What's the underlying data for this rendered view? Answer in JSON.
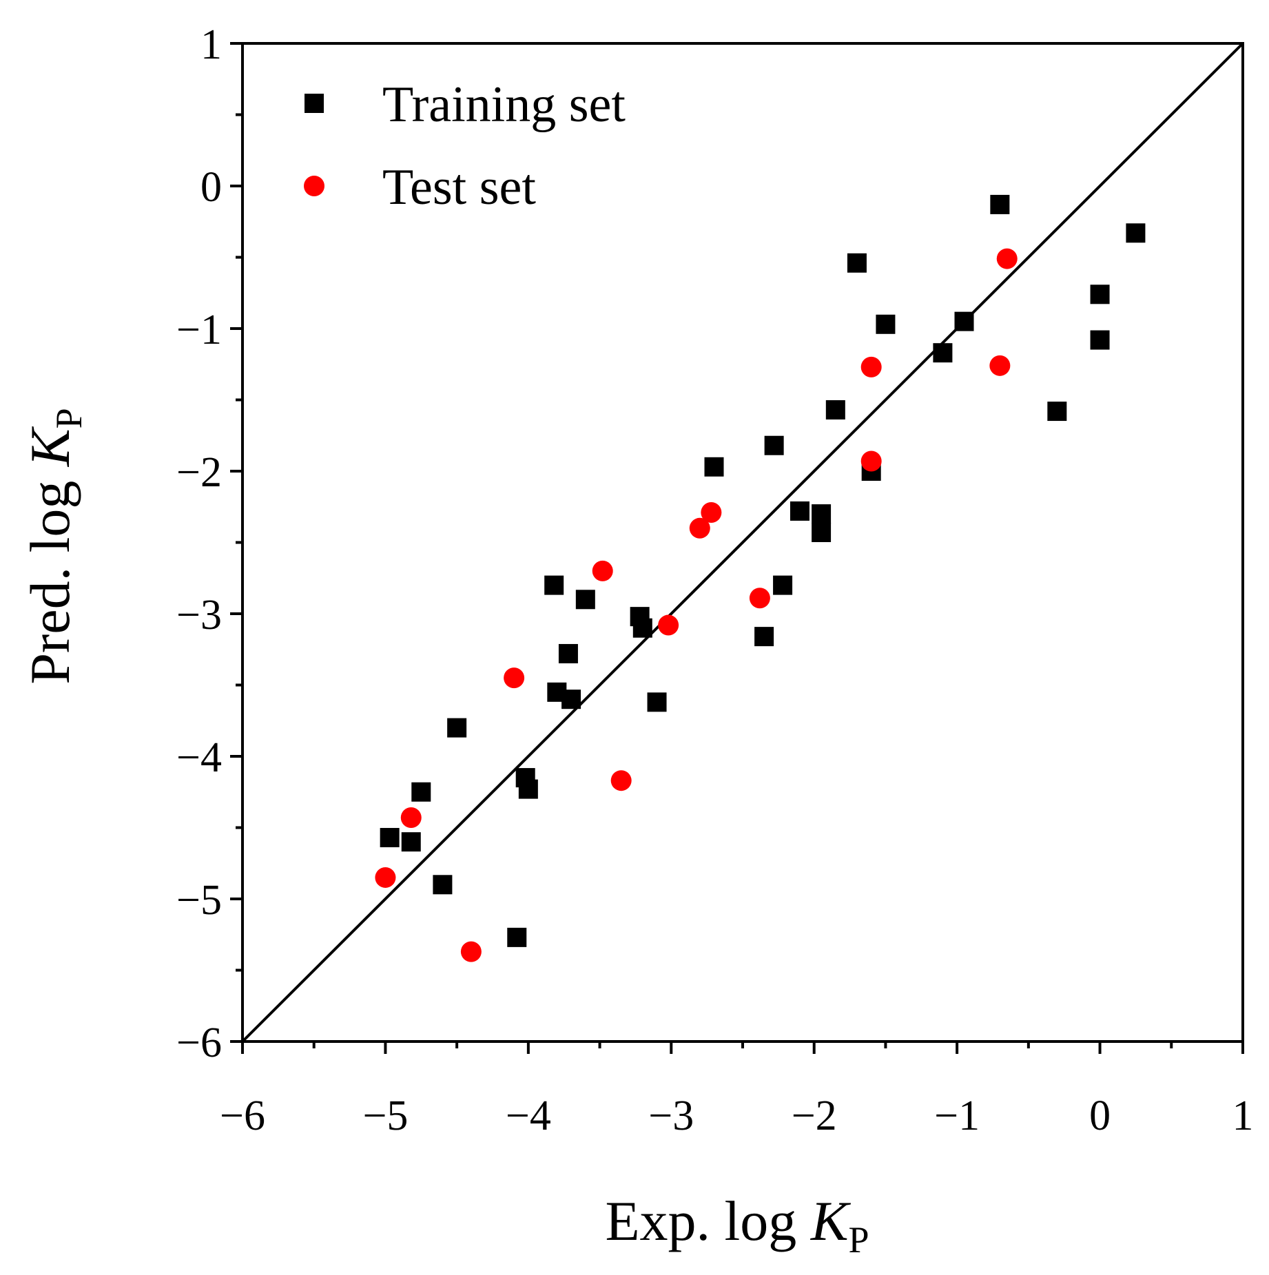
{
  "chart_data": {
    "type": "scatter",
    "title": "",
    "xlabel": {
      "prefix": "Exp. log ",
      "var": "K",
      "sub": "P"
    },
    "ylabel": {
      "prefix": "Pred. log ",
      "var": "K",
      "sub": "P"
    },
    "xlim": [
      -6,
      1
    ],
    "ylim": [
      -6,
      1
    ],
    "major_ticks": [
      -6,
      -5,
      -4,
      -3,
      -2,
      -1,
      0,
      1
    ],
    "tick_labels": [
      "−6",
      "−5",
      "−4",
      "−3",
      "−2",
      "−1",
      "0",
      "1"
    ],
    "minor_step": 0.5,
    "grid": false,
    "legend_position": "top-left",
    "reference_line": {
      "from": [
        -6,
        -6
      ],
      "to": [
        1,
        1
      ],
      "color": "#000000"
    },
    "series": [
      {
        "name": "Training set",
        "marker": "square",
        "color": "#000000",
        "points": [
          [
            -0.7,
            -0.13
          ],
          [
            0.25,
            -0.33
          ],
          [
            0.0,
            -0.76
          ],
          [
            0.0,
            -1.08
          ],
          [
            -1.7,
            -0.54
          ],
          [
            -1.5,
            -0.97
          ],
          [
            -0.95,
            -0.95
          ],
          [
            -1.1,
            -1.17
          ],
          [
            -0.3,
            -1.58
          ],
          [
            -1.85,
            -1.57
          ],
          [
            -2.28,
            -1.82
          ],
          [
            -2.7,
            -1.97
          ],
          [
            -1.6,
            -2.0
          ],
          [
            -2.1,
            -2.28
          ],
          [
            -1.95,
            -2.3
          ],
          [
            -1.95,
            -2.43
          ],
          [
            -2.22,
            -2.8
          ],
          [
            -2.35,
            -3.16
          ],
          [
            -3.82,
            -2.8
          ],
          [
            -3.6,
            -2.9
          ],
          [
            -3.22,
            -3.02
          ],
          [
            -3.2,
            -3.1
          ],
          [
            -3.1,
            -3.62
          ],
          [
            -3.72,
            -3.28
          ],
          [
            -3.8,
            -3.55
          ],
          [
            -3.7,
            -3.6
          ],
          [
            -4.5,
            -3.8
          ],
          [
            -4.02,
            -4.15
          ],
          [
            -4.0,
            -4.23
          ],
          [
            -4.75,
            -4.25
          ],
          [
            -4.97,
            -4.57
          ],
          [
            -4.82,
            -4.6
          ],
          [
            -4.6,
            -4.9
          ],
          [
            -4.08,
            -5.27
          ]
        ]
      },
      {
        "name": "Test set",
        "marker": "circle",
        "color": "#ff0000",
        "points": [
          [
            -0.65,
            -0.51
          ],
          [
            -1.6,
            -1.27
          ],
          [
            -0.7,
            -1.26
          ],
          [
            -1.6,
            -1.93
          ],
          [
            -2.72,
            -2.29
          ],
          [
            -2.8,
            -2.4
          ],
          [
            -3.48,
            -2.7
          ],
          [
            -2.38,
            -2.89
          ],
          [
            -3.02,
            -3.08
          ],
          [
            -4.1,
            -3.45
          ],
          [
            -3.35,
            -4.17
          ],
          [
            -4.82,
            -4.43
          ],
          [
            -5.0,
            -4.85
          ],
          [
            -4.4,
            -5.37
          ]
        ]
      }
    ]
  }
}
